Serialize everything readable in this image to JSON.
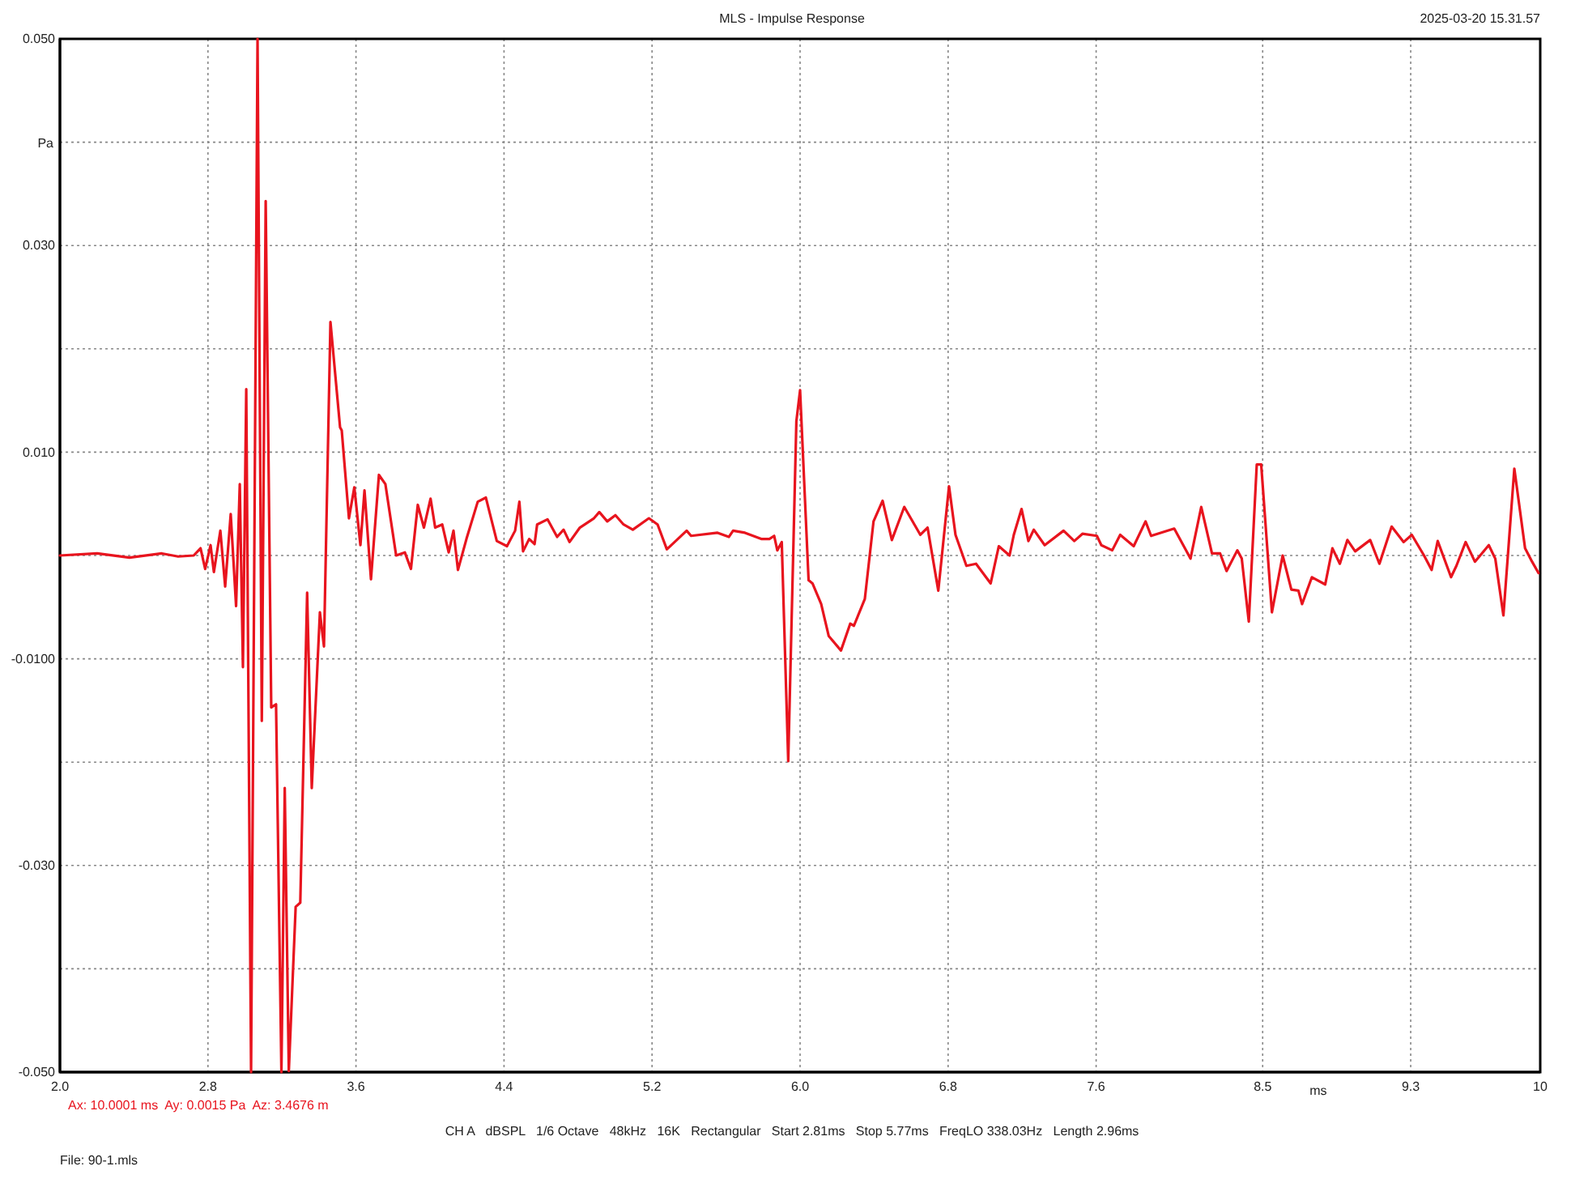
{
  "chart_data": {
    "type": "line",
    "title": "MLS - Impulse Response",
    "xlabel": "ms",
    "ylabel": "Pa",
    "annotations": [
      "2025-03-20 15.31.57",
      "Ax: 10.0001 ms  Ay: 0.0015 Pa  Az: 3.4676 m",
      "CH A   dBSPL   1/6 Octave   48kHz   16K   Rectangular   Start 2.81ms   Stop 5.77ms   FreqLO 338.03Hz   Length 2.96ms",
      "File: 90-1.mls"
    ],
    "xlim": [
      2,
      10
    ],
    "ylim": [
      -0.05,
      0.05
    ],
    "xticks": [
      {
        "value": 2,
        "label": "2.0"
      },
      2.8,
      3.6,
      4.4,
      5.2,
      {
        "value": 6,
        "label": "6.0"
      },
      6.8,
      7.6,
      8.5,
      9.3,
      10
    ],
    "yticks": [
      {
        "value": 0.05,
        "label": "0.050"
      },
      {
        "value": 0.04,
        "label": null
      },
      {
        "value": 0.03,
        "label": "0.030"
      },
      {
        "value": 0.02,
        "label": null
      },
      {
        "value": 0.01,
        "label": "0.010"
      },
      {
        "value": 0,
        "label": null
      },
      {
        "value": -0.01,
        "label": "-0.0100"
      },
      {
        "value": -0.02,
        "label": null
      },
      {
        "value": -0.03,
        "label": "-0.030"
      },
      {
        "value": -0.04,
        "label": null
      },
      {
        "value": -0.05,
        "label": "-0.050"
      }
    ],
    "grid": true,
    "line_style": "solid",
    "marker": "none",
    "series": [
      {
        "color": "#e8141e",
        "x": [
          2.0,
          2.201,
          2.376,
          2.551,
          2.639,
          2.723,
          2.76,
          2.785,
          2.814,
          2.832,
          2.867,
          2.893,
          2.923,
          2.952,
          2.972,
          2.989,
          3.007,
          3.033,
          3.068,
          3.091,
          3.112,
          3.142,
          3.168,
          3.197,
          3.215,
          3.237,
          3.274,
          3.299,
          3.336,
          3.361,
          3.405,
          3.427,
          3.462,
          3.514,
          3.523,
          3.562,
          3.591,
          3.624,
          3.646,
          3.681,
          3.724,
          3.759,
          3.817,
          3.864,
          3.897,
          3.934,
          3.967,
          4.003,
          4.028,
          4.066,
          4.101,
          4.127,
          4.151,
          4.197,
          4.258,
          4.302,
          4.361,
          4.416,
          4.46,
          4.483,
          4.503,
          4.536,
          4.565,
          4.579,
          4.635,
          4.687,
          4.722,
          4.754,
          4.81,
          4.886,
          4.915,
          4.958,
          5.002,
          5.046,
          5.096,
          5.183,
          5.23,
          5.28,
          5.387,
          5.411,
          5.554,
          5.615,
          5.638,
          5.702,
          5.79,
          5.834,
          5.86,
          5.877,
          5.901,
          5.936,
          5.98,
          6.0,
          6.046,
          6.067,
          6.114,
          6.155,
          6.221,
          6.271,
          6.291,
          6.35,
          6.397,
          6.446,
          6.496,
          6.563,
          6.65,
          6.689,
          6.747,
          6.805,
          6.84,
          6.899,
          6.951,
          7.03,
          7.074,
          7.132,
          7.155,
          7.197,
          7.234,
          7.263,
          7.322,
          7.424,
          7.482,
          7.526,
          7.604,
          7.628,
          7.687,
          7.73,
          7.803,
          7.867,
          7.897,
          8.022,
          8.11,
          8.168,
          8.226,
          8.27,
          8.305,
          8.363,
          8.387,
          8.425,
          8.468,
          8.492,
          8.55,
          8.608,
          8.655,
          8.693,
          8.713,
          8.766,
          8.838,
          8.877,
          8.917,
          8.958,
          9.0,
          9.081,
          9.131,
          9.197,
          9.262,
          9.306,
          9.372,
          9.413,
          9.446,
          9.518,
          9.547,
          9.597,
          9.647,
          9.722,
          9.757,
          9.801,
          9.86,
          9.918,
          9.956,
          9.991
        ],
        "values": [
          0,
          0.0002,
          -0.0002,
          0.0002,
          -0.0001,
          0,
          0.0007,
          -0.0013,
          0.001,
          -0.0016,
          0.0024,
          -0.003,
          0.004,
          -0.0049,
          0.0069,
          -0.0108,
          0.0161,
          -0.05,
          0.05,
          -0.016,
          0.0343,
          -0.0147,
          -0.0144,
          -0.05,
          -0.0225,
          -0.0499,
          -0.034,
          -0.0336,
          -0.0036,
          -0.0225,
          -0.0055,
          -0.0088,
          0.0226,
          0.0124,
          0.0121,
          0.0036,
          0.0066,
          0.001,
          0.0063,
          -0.0023,
          0.0078,
          0.0069,
          0,
          0.0003,
          -0.0013,
          0.0049,
          0.0027,
          0.0055,
          0.0027,
          0.003,
          0.0003,
          0.0024,
          -0.0014,
          0.0016,
          0.0052,
          0.0056,
          0.0014,
          0.0009,
          0.0024,
          0.0052,
          0.0004,
          0.0016,
          0.0011,
          0.003,
          0.0035,
          0.0018,
          0.0025,
          0.0013,
          0.0027,
          0.0036,
          0.0042,
          0.0033,
          0.0039,
          0.003,
          0.0025,
          0.0036,
          0.003,
          0.0006,
          0.0024,
          0.0019,
          0.0022,
          0.0018,
          0.0024,
          0.0022,
          0.0016,
          0.0016,
          0.0019,
          0.0005,
          0.0013,
          -0.0199,
          0.013,
          0.016,
          -0.0024,
          -0.0027,
          -0.0047,
          -0.0078,
          -0.0092,
          -0.0066,
          -0.0068,
          -0.0042,
          0.0033,
          0.0053,
          0.0015,
          0.0047,
          0.002,
          0.0027,
          -0.0034,
          0.0067,
          0.002,
          -0.001,
          -0.0008,
          -0.0027,
          0.0009,
          0,
          0.002,
          0.0045,
          0.0014,
          0.0025,
          0.001,
          0.0024,
          0.0014,
          0.0021,
          0.0019,
          0.001,
          0.0005,
          0.002,
          0.0009,
          0.0033,
          0.0019,
          0.0026,
          -0.0003,
          0.0047,
          0.0002,
          0.0002,
          -0.0015,
          0.0005,
          -0.0003,
          -0.0064,
          0.0088,
          0.0088,
          -0.0055,
          0,
          -0.0033,
          -0.0034,
          -0.0047,
          -0.0021,
          -0.0028,
          0.0007,
          -0.0008,
          0.0015,
          0.0004,
          0.0015,
          -0.0008,
          0.0028,
          0.0013,
          0.002,
          0,
          -0.0014,
          0.0014,
          -0.0021,
          -0.001,
          0.0013,
          -0.0006,
          0.001,
          -0.0003,
          -0.0058,
          0.0084,
          0.0007,
          -0.0006,
          -0.0017
        ]
      }
    ]
  }
}
